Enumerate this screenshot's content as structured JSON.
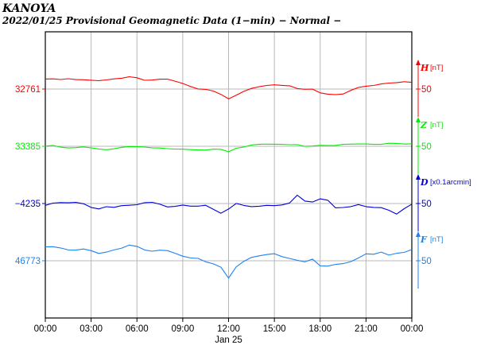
{
  "header": {
    "station": "KANOYA",
    "subtitle": "2022/01/25  Provisional Geomagnetic Data (1−min)  − Normal −"
  },
  "chart_data": {
    "type": "line",
    "x_ticks": [
      "00:00",
      "03:00",
      "06:00",
      "09:00",
      "12:00",
      "15:00",
      "18:00",
      "21:00",
      "00:00"
    ],
    "x_sublabel": "Jan 25",
    "x_hours": [
      0,
      0.5,
      1,
      1.5,
      2,
      2.5,
      3,
      3.5,
      4,
      4.5,
      5,
      5.5,
      6,
      6.5,
      7,
      7.5,
      8,
      8.5,
      9,
      9.5,
      10,
      10.5,
      11,
      11.5,
      12,
      12.5,
      13,
      13.5,
      14,
      14.5,
      15,
      15.5,
      16,
      16.5,
      17,
      17.5,
      18,
      18.5,
      19,
      19.5,
      20,
      20.5,
      21,
      21.5,
      22,
      22.5,
      23,
      23.5,
      24
    ],
    "grid": true,
    "series": [
      {
        "name": "H",
        "unit": "[nT]",
        "color": "#ff0000",
        "baseline_label": "32761",
        "scale_label": "50",
        "values": [
          32779.0,
          32779.3,
          32778.2,
          32779.5,
          32778.0,
          32777.7,
          32776.8,
          32776.0,
          32777.5,
          32779.3,
          32780.4,
          32783.1,
          32781.3,
          32776.7,
          32777.2,
          32778.7,
          32778.8,
          32775.1,
          32771.0,
          32765.5,
          32761.2,
          32760.4,
          32757.4,
          32751.5,
          32743.3,
          32749.8,
          32756.9,
          32762.1,
          32765.1,
          32767.4,
          32768.6,
          32767.6,
          32766.8,
          32761.9,
          32760.6,
          32760.8,
          32754.1,
          32751.8,
          32750.9,
          32752.2,
          32758.6,
          32763.9,
          32766.2,
          32767.5,
          32770.1,
          32771.7,
          32772.6,
          32774.1,
          32773.0
        ]
      },
      {
        "name": "Z",
        "unit": "[nT]",
        "color": "#00ee00",
        "baseline_label": "33385",
        "scale_label": "50",
        "values": [
          33385.2,
          33386.6,
          33383.5,
          33382.0,
          33382.6,
          33383.8,
          33382.2,
          33380.2,
          33378.9,
          33380.4,
          33383.2,
          33384.5,
          33384.3,
          33383.6,
          33382.3,
          33381.8,
          33380.7,
          33380.0,
          33379.9,
          33379.0,
          33378.5,
          33378.2,
          33379.8,
          33379.6,
          33375.1,
          33381.4,
          33383.7,
          33387.3,
          33388.7,
          33388.8,
          33388.7,
          33388.5,
          33387.8,
          33388.0,
          33384.9,
          33385.4,
          33386.7,
          33386.4,
          33386.6,
          33388.5,
          33388.8,
          33389.2,
          33389.2,
          33388.4,
          33388.5,
          33390.5,
          33390.2,
          33389.0,
          33389.4
        ]
      },
      {
        "name": "D",
        "unit": "[x0.1arcmin]",
        "color": "#0000dd",
        "baseline_label": "−4235",
        "scale_label": "50",
        "values": [
          -4238.3,
          -4234.3,
          -4233.3,
          -4233.7,
          -4233.0,
          -4235.4,
          -4242.0,
          -4244.7,
          -4240.7,
          -4241.9,
          -4238.8,
          -4238.1,
          -4237.1,
          -4233.4,
          -4232.8,
          -4236.3,
          -4241.2,
          -4240.2,
          -4237.7,
          -4239.7,
          -4239.7,
          -4238.1,
          -4245.3,
          -4252.4,
          -4244.9,
          -4234.9,
          -4238.5,
          -4240.6,
          -4239.8,
          -4238.3,
          -4238.8,
          -4237.5,
          -4234.0,
          -4220.0,
          -4230.6,
          -4232.3,
          -4226.5,
          -4229.2,
          -4242.7,
          -4242.1,
          -4240.5,
          -4236.9,
          -4240.5,
          -4242.0,
          -4242.4,
          -4247.1,
          -4254.0,
          -4244.3,
          -4236.1
        ]
      },
      {
        "name": "F",
        "unit": "[nT]",
        "color": "#1e82f0",
        "baseline_label": "46773",
        "scale_label": "50",
        "values": [
          46798.0,
          46798.3,
          46796.0,
          46792.5,
          46792.1,
          46794.1,
          46791.1,
          46786.2,
          46788.5,
          46792.5,
          46795.7,
          46801.1,
          46798.8,
          46792.4,
          46790.1,
          46792.0,
          46791.1,
          46786.5,
          46781.2,
          46778.1,
          46777.3,
          46771.2,
          46767.4,
          46761.5,
          46741.9,
          46762.0,
          46772.0,
          46779.0,
          46781.8,
          46784.2,
          46785.7,
          46780.5,
          46777.2,
          46773.8,
          46771.0,
          46776.0,
          46763.8,
          46763.4,
          46766.4,
          46767.9,
          46771.4,
          46778.0,
          46785.4,
          46784.7,
          46788.5,
          46783.1,
          46786.5,
          46788.0,
          46793.2
        ]
      }
    ]
  }
}
